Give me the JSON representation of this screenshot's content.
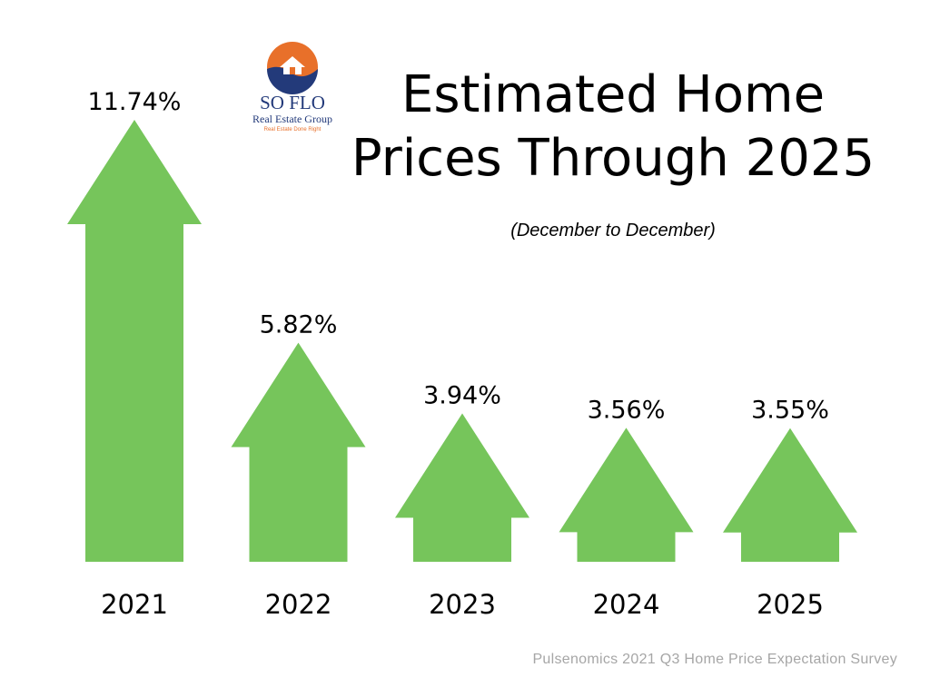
{
  "title_line1": "Estimated Home",
  "title_line2": "Prices Through 2025",
  "subtitle": "(December to December)",
  "source": "Pulsenomics 2021 Q3 Home Price Expectation Survey",
  "logo": {
    "name": "SO FLO",
    "group": "Real Estate Group",
    "tagline": "Real Estate Done Right",
    "colors": {
      "orange": "#e8702a",
      "navy": "#233a7a"
    }
  },
  "colors": {
    "arrow": "#76c55b",
    "text": "#000000",
    "source": "#a6a6a6"
  },
  "chart_data": {
    "type": "bar",
    "bar_shape": "up-arrow",
    "categories": [
      "2021",
      "2022",
      "2023",
      "2024",
      "2025"
    ],
    "values": [
      11.74,
      5.82,
      3.94,
      3.56,
      3.55
    ],
    "labels": [
      "11.74%",
      "5.82%",
      "3.94%",
      "3.56%",
      "3.55%"
    ],
    "title": "Estimated Home Prices Through 2025",
    "subtitle": "(December to December)",
    "xlabel": "",
    "ylabel": "",
    "grid": false,
    "legend": "none"
  }
}
